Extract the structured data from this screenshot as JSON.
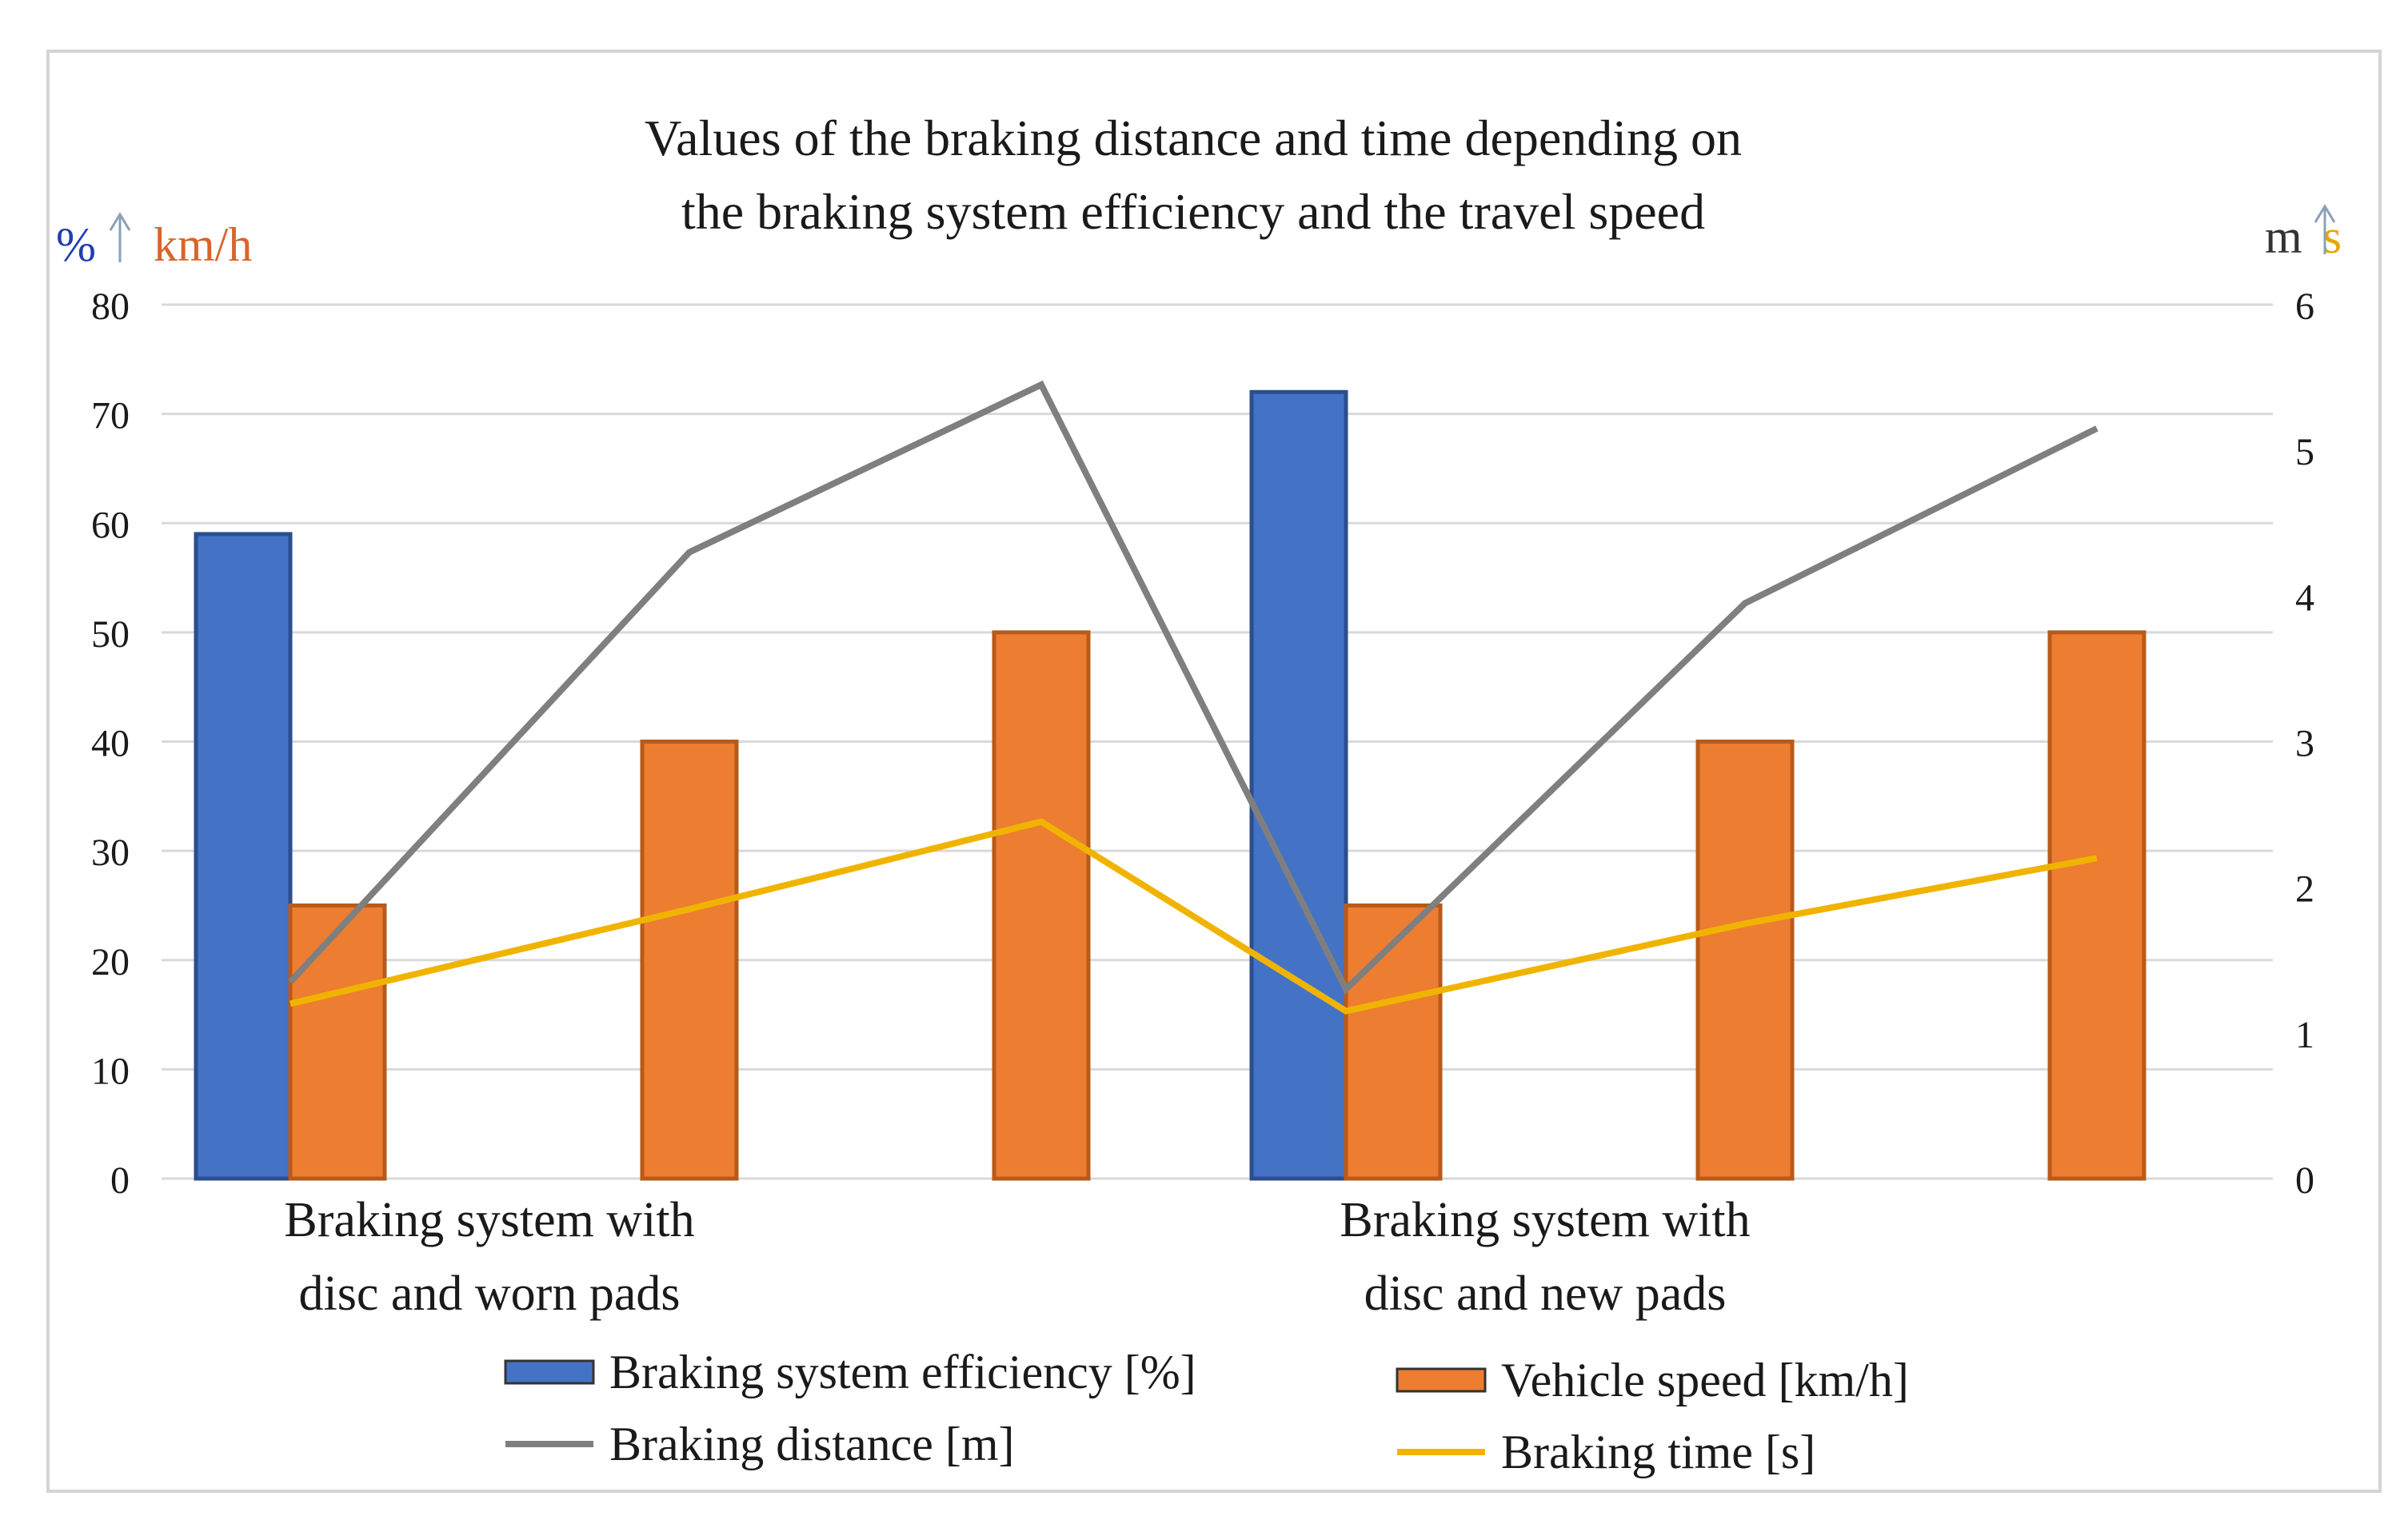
{
  "chart_data": {
    "type": "bar",
    "title": [
      "Values of the braking distance and time depending on",
      "the braking system efficiency and the travel speed"
    ],
    "left_axis": {
      "label_parts": [
        "%",
        "km/h"
      ],
      "label_colors": [
        "#1f3fb0",
        "#d9642a"
      ],
      "ylim": [
        0,
        80
      ],
      "ticks": [
        "0",
        "10",
        "20",
        "30",
        "40",
        "50",
        "60",
        "70",
        "80"
      ]
    },
    "right_axis": {
      "label_parts": [
        "m",
        "s"
      ],
      "label_colors": [
        "#333333",
        "#e8a400"
      ],
      "ylim": [
        0,
        6
      ],
      "ticks": [
        "0",
        "1",
        "2",
        "3",
        "4",
        "5",
        "6"
      ]
    },
    "grid": true,
    "groups": [
      {
        "label": [
          "Braking system with",
          "disc and worn pads"
        ]
      },
      {
        "label": [
          "Braking system with",
          "disc and new pads"
        ]
      }
    ],
    "efficiency_series": {
      "name": "Braking system efficiency [%]",
      "color": "#4472c4",
      "axis": "left",
      "points": [
        {
          "slot": 0,
          "value": 59
        },
        {
          "slot": 3,
          "value": 72
        }
      ]
    },
    "speed_series": {
      "name": "Vehicle speed [km/h]",
      "color": "#ed7d31",
      "axis": "left",
      "values": [
        25,
        40,
        50,
        25,
        40,
        50
      ]
    },
    "line_series": [
      {
        "name": "Braking distance [m]",
        "color": "#7f7f7f",
        "axis": "right",
        "values": [
          1.35,
          4.3,
          5.45,
          1.3,
          3.95,
          5.15
        ]
      },
      {
        "name": "Braking time [s]",
        "color": "#f0b400",
        "axis": "right",
        "values": [
          1.2,
          1.85,
          2.45,
          1.15,
          1.75,
          2.2
        ]
      }
    ],
    "legend_position": "bottom"
  }
}
